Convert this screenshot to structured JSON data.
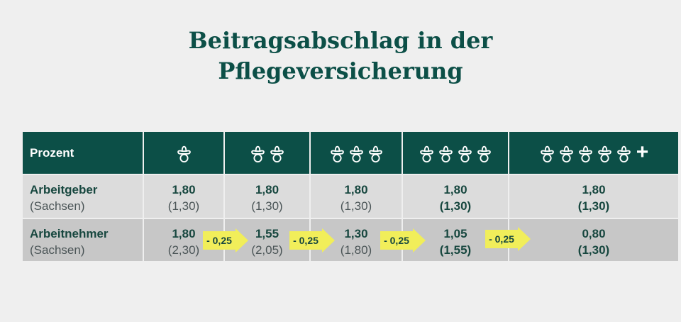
{
  "title": {
    "line1": "Beitragsabschlag in der",
    "line2": "Pflegeversicherung"
  },
  "colors": {
    "header_bg": "#0c4f47",
    "row1_bg": "#dcdcdc",
    "row2_bg": "#c7c7c7",
    "badge": "#f1ee5a"
  },
  "table": {
    "header": {
      "label": "Prozent",
      "columns": [
        {
          "icon": "pacifier-icon",
          "count": 1
        },
        {
          "icon": "pacifier-icon",
          "count": 2
        },
        {
          "icon": "pacifier-icon",
          "count": 3
        },
        {
          "icon": "pacifier-icon",
          "count": 4
        },
        {
          "icon": "pacifier-icon",
          "count": 5,
          "plus": "+"
        }
      ]
    },
    "rows": [
      {
        "label": "Arbeitgeber",
        "sublabel": "(Sachsen)",
        "values": [
          {
            "main": "1,80",
            "sub": "(1,30)"
          },
          {
            "main": "1,80",
            "sub": "(1,30)"
          },
          {
            "main": "1,80",
            "sub": "(1,30)"
          },
          {
            "main": "1,80",
            "sub": "(1,30)"
          },
          {
            "main": "1,80",
            "sub": "(1,30)"
          }
        ]
      },
      {
        "label": "Arbeitnehmer",
        "sublabel": "(Sachsen)",
        "values": [
          {
            "main": "1,80",
            "sub": "(2,30)"
          },
          {
            "main": "1,55",
            "sub": "(2,05)"
          },
          {
            "main": "1,30",
            "sub": "(1,80)"
          },
          {
            "main": "1,05",
            "sub": "(1,55)"
          },
          {
            "main": "0,80",
            "sub": "(1,30)"
          }
        ]
      }
    ],
    "reduction_badges": [
      "- 0,25",
      "- 0,25",
      "- 0,25",
      "- 0,25"
    ]
  }
}
